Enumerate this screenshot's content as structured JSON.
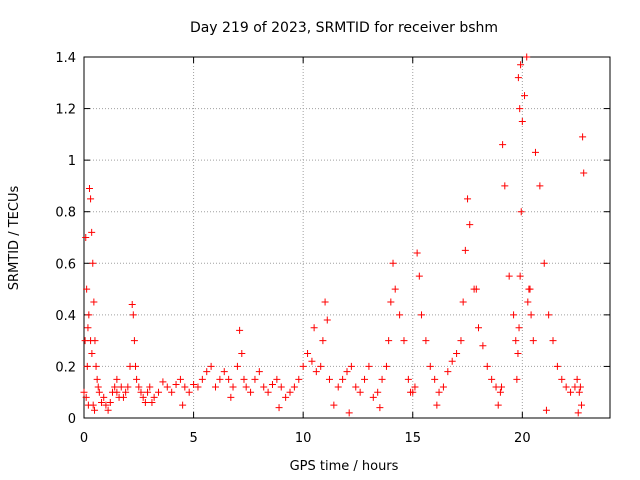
{
  "chart_data": {
    "type": "scatter",
    "title": "Day 219 of 2023, SRMTID for receiver bshm",
    "xlabel": "GPS time / hours",
    "ylabel": "SRMTID / TECUs",
    "xlim": [
      0,
      24
    ],
    "ylim": [
      0,
      1.4
    ],
    "xticks": [
      0,
      5,
      10,
      15,
      20
    ],
    "yticks": [
      0,
      0.2,
      0.4,
      0.6,
      0.8,
      1,
      1.2,
      1.4
    ],
    "ytick_labels": [
      "0",
      "0.2",
      "0.4",
      "0.6",
      "0.8",
      "1",
      "1.2",
      "1.4"
    ],
    "grid": true,
    "marker": "+",
    "color": "#ff0000",
    "series": [
      {
        "name": "SRMTID",
        "x": [
          0.0,
          0.05,
          0.1,
          0.15,
          0.2,
          0.25,
          0.3,
          0.35,
          0.4,
          0.45,
          0.5,
          0.55,
          0.6,
          0.65,
          0.7,
          0.8,
          0.9,
          1.0,
          1.1,
          1.2,
          1.3,
          1.4,
          1.5,
          1.6,
          1.7,
          1.8,
          1.9,
          2.0,
          2.1,
          2.2,
          2.25,
          2.3,
          2.35,
          2.4,
          2.5,
          2.6,
          2.7,
          2.8,
          2.9,
          3.0,
          3.2,
          3.4,
          3.6,
          3.8,
          4.0,
          4.2,
          4.4,
          4.6,
          4.8,
          5.0,
          5.2,
          5.4,
          5.6,
          5.8,
          6.0,
          6.2,
          6.4,
          6.6,
          6.8,
          7.0,
          7.1,
          7.2,
          7.3,
          7.4,
          7.6,
          7.8,
          8.0,
          8.2,
          8.4,
          8.6,
          8.8,
          9.0,
          9.2,
          9.4,
          9.6,
          9.8,
          10.0,
          10.2,
          10.4,
          10.6,
          10.8,
          10.9,
          11.0,
          11.1,
          11.2,
          11.4,
          11.6,
          11.8,
          12.0,
          12.2,
          12.4,
          12.6,
          12.8,
          13.0,
          13.2,
          13.4,
          13.6,
          13.8,
          13.9,
          14.0,
          14.1,
          14.2,
          14.4,
          14.6,
          14.8,
          15.0,
          15.1,
          15.2,
          15.3,
          15.4,
          15.6,
          15.8,
          16.0,
          16.2,
          16.4,
          16.6,
          16.8,
          17.0,
          17.2,
          17.3,
          17.4,
          17.5,
          17.6,
          17.8,
          18.0,
          18.2,
          18.4,
          18.6,
          18.8,
          19.0,
          19.05,
          19.1,
          19.2,
          19.4,
          19.6,
          19.7,
          19.8,
          19.85,
          19.9,
          19.95,
          20.0,
          20.1,
          20.2,
          20.3,
          20.4,
          20.5,
          20.6,
          20.8,
          21.0,
          21.2,
          21.4,
          21.6,
          21.8,
          22.0,
          22.2,
          22.4,
          22.5,
          22.6,
          22.65,
          22.7,
          22.75,
          22.8,
          0.08,
          0.12,
          0.18,
          0.22,
          0.3,
          0.36,
          0.42,
          0.48,
          1.5,
          3.1,
          4.5,
          6.7,
          8.9,
          10.5,
          12.1,
          13.5,
          14.9,
          16.1,
          17.9,
          18.9,
          19.75,
          19.82,
          19.88,
          19.92,
          20.25,
          20.35,
          21.1,
          22.55
        ],
        "y": [
          0.1,
          0.3,
          0.08,
          0.2,
          0.05,
          0.89,
          0.85,
          0.72,
          0.6,
          0.45,
          0.3,
          0.2,
          0.15,
          0.12,
          0.1,
          0.06,
          0.08,
          0.05,
          0.03,
          0.06,
          0.1,
          0.12,
          0.1,
          0.08,
          0.12,
          0.08,
          0.1,
          0.12,
          0.2,
          0.44,
          0.4,
          0.3,
          0.2,
          0.15,
          0.12,
          0.1,
          0.08,
          0.06,
          0.1,
          0.12,
          0.08,
          0.1,
          0.14,
          0.12,
          0.1,
          0.13,
          0.15,
          0.12,
          0.1,
          0.13,
          0.12,
          0.15,
          0.18,
          0.2,
          0.12,
          0.15,
          0.18,
          0.15,
          0.12,
          0.2,
          0.34,
          0.25,
          0.15,
          0.12,
          0.1,
          0.15,
          0.18,
          0.12,
          0.1,
          0.13,
          0.15,
          0.12,
          0.08,
          0.1,
          0.12,
          0.15,
          0.2,
          0.25,
          0.22,
          0.18,
          0.2,
          0.3,
          0.45,
          0.38,
          0.15,
          0.05,
          0.12,
          0.15,
          0.18,
          0.2,
          0.12,
          0.1,
          0.15,
          0.2,
          0.08,
          0.1,
          0.15,
          0.2,
          0.3,
          0.45,
          0.6,
          0.5,
          0.4,
          0.3,
          0.15,
          0.1,
          0.12,
          0.64,
          0.55,
          0.4,
          0.3,
          0.2,
          0.15,
          0.1,
          0.12,
          0.18,
          0.22,
          0.25,
          0.3,
          0.45,
          0.65,
          0.85,
          0.75,
          0.5,
          0.35,
          0.28,
          0.2,
          0.15,
          0.12,
          0.1,
          0.12,
          1.06,
          0.9,
          0.55,
          0.4,
          0.3,
          0.25,
          0.35,
          0.55,
          0.8,
          1.15,
          1.25,
          1.4,
          0.5,
          0.4,
          0.3,
          1.03,
          0.9,
          0.6,
          0.4,
          0.3,
          0.2,
          0.15,
          0.12,
          0.1,
          0.12,
          0.15,
          0.1,
          0.12,
          0.05,
          1.09,
          0.95,
          0.7,
          0.5,
          0.35,
          0.4,
          0.3,
          0.25,
          0.05,
          0.03,
          0.15,
          0.06,
          0.05,
          0.08,
          0.04,
          0.35,
          0.02,
          0.04,
          0.1,
          0.05,
          0.5,
          0.05,
          0.15,
          1.32,
          1.2,
          1.37,
          0.45,
          0.5,
          0.03,
          0.02
        ]
      }
    ]
  }
}
